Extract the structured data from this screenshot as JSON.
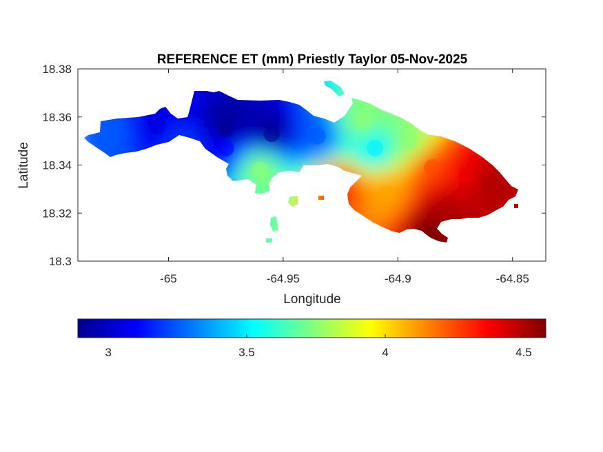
{
  "title": "REFERENCE ET (mm) Priestly Taylor 05-Nov-2025",
  "axes": {
    "xlabel": "Longitude",
    "ylabel": "Latitude",
    "xlim": [
      -65.0395,
      -64.8355
    ],
    "ylim": [
      18.3,
      18.38
    ],
    "x_ticks": [
      -65,
      -64.95,
      -64.9,
      -64.85
    ],
    "x_tick_labels": [
      "-65",
      "-64.95",
      "-64.9",
      "-64.85"
    ],
    "y_ticks": [
      18.3,
      18.32,
      18.34,
      18.36,
      18.38
    ],
    "y_tick_labels": [
      "18.3",
      "18.32",
      "18.34",
      "18.36",
      "18.38"
    ]
  },
  "colorbar": {
    "colormap": "jet",
    "range": [
      2.89,
      4.58
    ],
    "ticks": [
      3,
      3.5,
      4,
      4.5
    ],
    "tick_labels": [
      "3",
      "3.5",
      "4",
      "4.5"
    ],
    "placement": "bottom-horizontal"
  },
  "map_data": {
    "type": "filled-contour",
    "variable": "Reference evapotranspiration (mm)",
    "date": "05-Nov-2025",
    "pattern": "lowest values (~2.9-3.1) over the central-west ridge, rising toward ~3.5-3.7 in the north-central area and peaking (~4.4-4.6) along the south-east coast",
    "samples": [
      {
        "lon": -65.025,
        "lat": 18.353,
        "value": 3.25
      },
      {
        "lon": -65.005,
        "lat": 18.356,
        "value": 3.05
      },
      {
        "lon": -64.975,
        "lat": 18.355,
        "value": 2.92
      },
      {
        "lon": -64.955,
        "lat": 18.353,
        "value": 2.93
      },
      {
        "lon": -64.975,
        "lat": 18.347,
        "value": 3.1
      },
      {
        "lon": -64.935,
        "lat": 18.352,
        "value": 3.25
      },
      {
        "lon": -64.96,
        "lat": 18.338,
        "value": 3.75
      },
      {
        "lon": -64.915,
        "lat": 18.358,
        "value": 3.75
      },
      {
        "lon": -64.91,
        "lat": 18.347,
        "value": 3.5
      },
      {
        "lon": -64.895,
        "lat": 18.35,
        "value": 3.75
      },
      {
        "lon": -64.885,
        "lat": 18.339,
        "value": 4.25
      },
      {
        "lon": -64.87,
        "lat": 18.336,
        "value": 4.4
      },
      {
        "lon": -64.905,
        "lat": 18.328,
        "value": 4.1
      },
      {
        "lon": -64.88,
        "lat": 18.321,
        "value": 4.5
      },
      {
        "lon": -64.885,
        "lat": 18.312,
        "value": 4.58
      },
      {
        "lon": -64.925,
        "lat": 18.33,
        "value": 4.3
      },
      {
        "lon": -64.86,
        "lat": 18.332,
        "value": 4.5
      },
      {
        "lon": -64.995,
        "lat": 18.348,
        "value": 3.2
      }
    ]
  }
}
